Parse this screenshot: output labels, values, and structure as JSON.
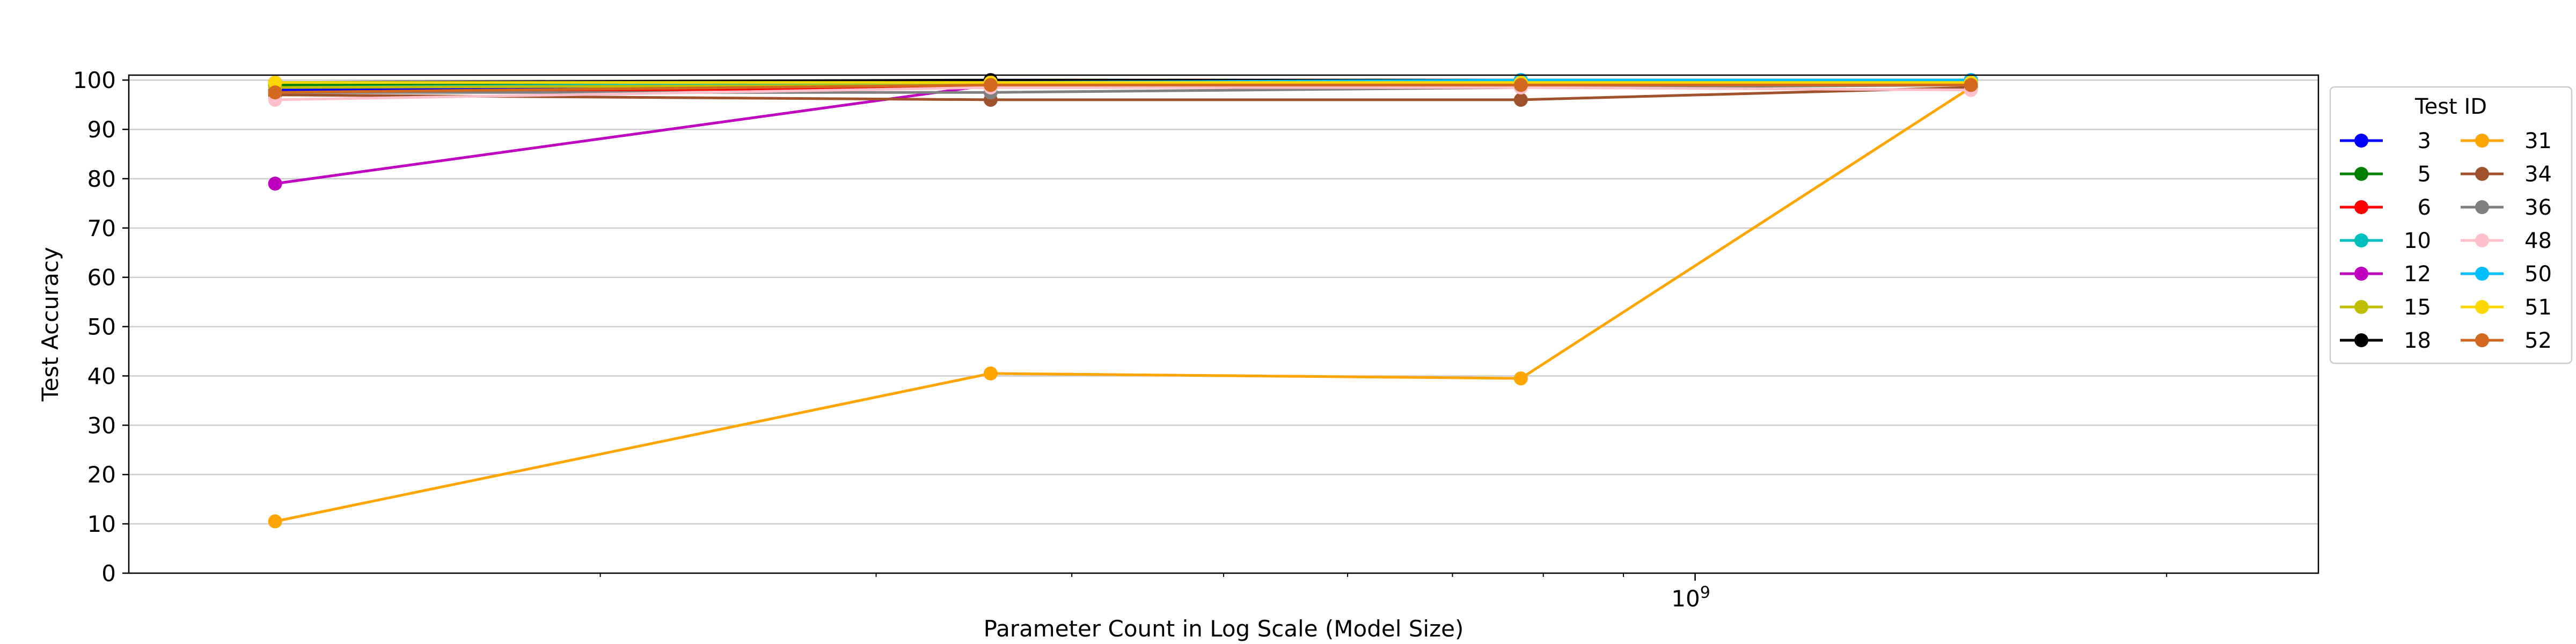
{
  "chart_data": {
    "type": "line",
    "xlabel": "Parameter Count in Log Scale (Model Size)",
    "ylabel": "Test Accuracy",
    "xscale": "log",
    "xlim": [
      100000000,
      2500000000
    ],
    "ylim": [
      0,
      101
    ],
    "x_tick_labels": [
      {
        "value": 1000000000,
        "label": "10",
        "exponent": "9"
      }
    ],
    "y_ticks": [
      0,
      10,
      20,
      30,
      40,
      50,
      60,
      70,
      80,
      90,
      100
    ],
    "grid": "horizontal",
    "legend": {
      "title": "Test ID",
      "placement": "right",
      "columns": 2
    },
    "x": [
      124000000,
      355000000,
      774000000,
      1500000000
    ],
    "series": [
      {
        "name": "3",
        "color": "#0000ff",
        "values": [
          98.0,
          98.5,
          99.0,
          99.0
        ]
      },
      {
        "name": "5",
        "color": "#008000",
        "values": [
          99.0,
          99.5,
          99.5,
          99.5
        ]
      },
      {
        "name": "6",
        "color": "#ff0000",
        "values": [
          97.5,
          98.5,
          99.0,
          99.0
        ]
      },
      {
        "name": "10",
        "color": "#00bfbf",
        "values": [
          98.5,
          99.5,
          99.5,
          99.5
        ]
      },
      {
        "name": "12",
        "color": "#bf00bf",
        "values": [
          79.0,
          99.0,
          99.0,
          99.0
        ]
      },
      {
        "name": "15",
        "color": "#bfbf00",
        "values": [
          98.5,
          99.0,
          99.5,
          99.5
        ]
      },
      {
        "name": "18",
        "color": "#000000",
        "values": [
          99.5,
          100.0,
          100.0,
          100.0
        ]
      },
      {
        "name": "31",
        "color": "#ffa500",
        "values": [
          10.5,
          40.5,
          39.5,
          98.5
        ]
      },
      {
        "name": "34",
        "color": "#a0522d",
        "values": [
          97.0,
          96.0,
          96.0,
          98.5
        ]
      },
      {
        "name": "36",
        "color": "#808080",
        "values": [
          97.5,
          97.5,
          98.5,
          99.0
        ]
      },
      {
        "name": "48",
        "color": "#ffc0cb",
        "values": [
          96.0,
          98.5,
          98.5,
          98.0
        ]
      },
      {
        "name": "50",
        "color": "#00bfff",
        "values": [
          99.5,
          99.5,
          100.0,
          100.0
        ]
      },
      {
        "name": "51",
        "color": "#ffd700",
        "values": [
          99.5,
          99.5,
          99.5,
          99.5
        ]
      },
      {
        "name": "52",
        "color": "#d2691e",
        "values": [
          97.5,
          99.0,
          99.0,
          99.0
        ]
      }
    ]
  }
}
